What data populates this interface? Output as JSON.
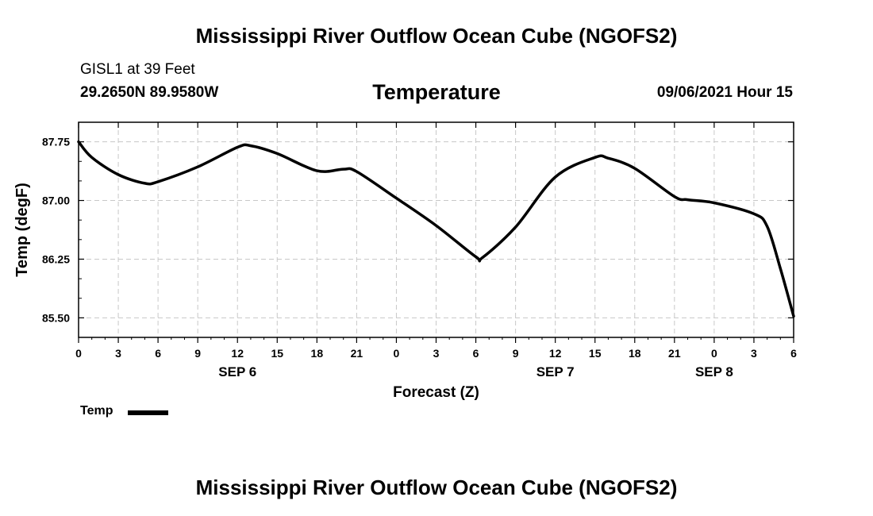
{
  "header": {
    "title": "Mississippi River Outflow Ocean Cube (NGOFS2)",
    "station": "GISL1 at 39 Feet",
    "coords": "29.2650N  89.9580W",
    "datetime": "09/06/2021 Hour 15"
  },
  "footer": {
    "title": "Mississippi River Outflow Ocean Cube (NGOFS2)"
  },
  "legend": {
    "label": "Temp",
    "color": "#000000"
  },
  "chart_data": {
    "type": "line",
    "title": "Temperature",
    "xlabel": "Forecast (Z)",
    "ylabel": "Temp (degF)",
    "xlim": [
      0,
      54
    ],
    "ylim": [
      85.25,
      88.0
    ],
    "grid": true,
    "y_ticks": [
      85.5,
      86.25,
      87.0,
      87.75
    ],
    "y_tick_labels": [
      "85.50",
      "86.25",
      "87.00",
      "87.75"
    ],
    "x_ticks": [
      0,
      3,
      6,
      9,
      12,
      15,
      18,
      21,
      24,
      27,
      30,
      33,
      36,
      39,
      42,
      45,
      48,
      51,
      54
    ],
    "x_tick_labels": [
      "0",
      "3",
      "6",
      "9",
      "12",
      "15",
      "18",
      "21",
      "0",
      "3",
      "6",
      "9",
      "12",
      "15",
      "18",
      "21",
      "0",
      "3",
      "6"
    ],
    "day_labels": [
      {
        "x": 12,
        "label": "SEP 6"
      },
      {
        "x": 36,
        "label": "SEP 7"
      },
      {
        "x": 48,
        "label": "SEP 8"
      }
    ],
    "series": [
      {
        "name": "Temp",
        "x": [
          0,
          1,
          3,
          5,
          6,
          9,
          12,
          13,
          15,
          18,
          20,
          21,
          24,
          27,
          30,
          30.5,
          33,
          36,
          39,
          40,
          42,
          45,
          46,
          48,
          51,
          52,
          53,
          54
        ],
        "values": [
          87.75,
          87.55,
          87.33,
          87.22,
          87.24,
          87.43,
          87.68,
          87.7,
          87.6,
          87.38,
          87.4,
          87.37,
          87.03,
          86.68,
          86.28,
          86.27,
          86.66,
          87.3,
          87.55,
          87.54,
          87.41,
          87.05,
          87.01,
          86.97,
          86.83,
          86.67,
          86.13,
          85.52
        ]
      }
    ]
  }
}
